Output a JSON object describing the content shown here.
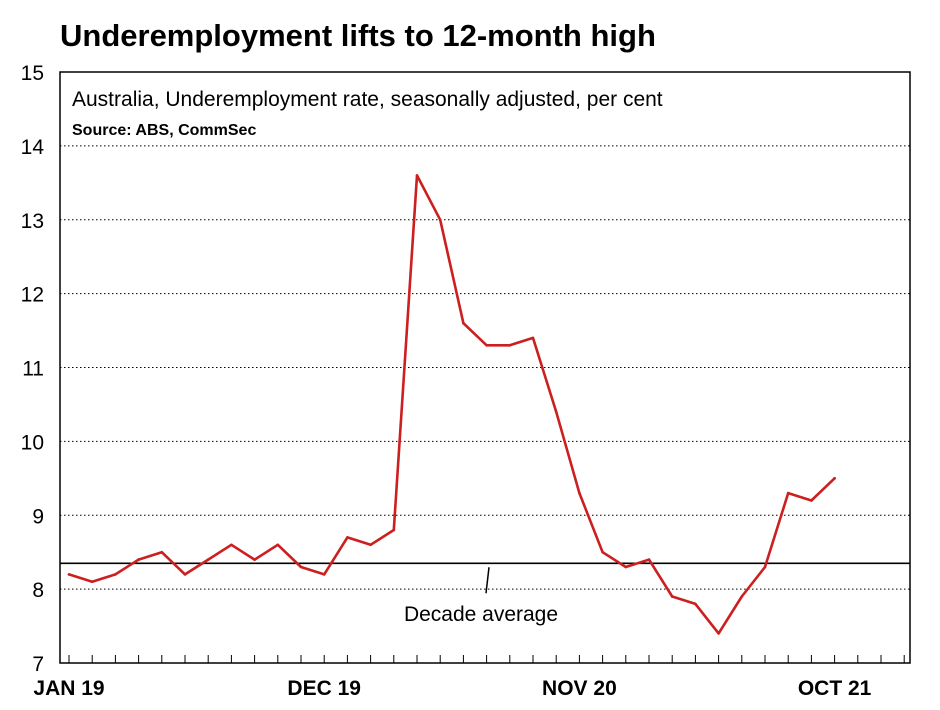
{
  "chart_data": {
    "type": "line",
    "title": "Underemployment lifts to 12-month high",
    "subtitle": "Australia, Underemployment rate, seasonally adjusted, per cent",
    "source": "Source: ABS, CommSec",
    "x": [
      "Jan 2019",
      "Feb 2019",
      "Mar 2019",
      "Apr 2019",
      "May 2019",
      "Jun 2019",
      "Jul 2019",
      "Aug 2019",
      "Sep 2019",
      "Oct 2019",
      "Nov 2019",
      "Dec 2019",
      "Jan 2020",
      "Feb 2020",
      "Mar 2020",
      "Apr 2020",
      "May 2020",
      "Jun 2020",
      "Jul 2020",
      "Aug 2020",
      "Sep 2020",
      "Oct 2020",
      "Nov 2020",
      "Dec 2020",
      "Jan 2021",
      "Feb 2021",
      "Mar 2021",
      "Apr 2021",
      "May 2021",
      "Jun 2021",
      "Jul 2021",
      "Aug 2021",
      "Sep 2021",
      "Oct 2021"
    ],
    "series": [
      {
        "values": [
          8.2,
          8.1,
          8.2,
          8.4,
          8.5,
          8.2,
          8.4,
          8.6,
          8.4,
          8.6,
          8.3,
          8.2,
          8.7,
          8.6,
          8.8,
          13.6,
          13.0,
          11.6,
          11.3,
          11.3,
          11.4,
          10.4,
          9.3,
          8.5,
          8.3,
          8.4,
          7.9,
          7.8,
          7.4,
          7.9,
          8.3,
          9.3,
          9.2,
          9.5
        ],
        "color": "#cc1f1f"
      }
    ],
    "reference_line": {
      "value": 8.35,
      "label": "Decade average",
      "color": "#000000"
    },
    "x_tick_labels": [
      "JAN 19",
      "DEC 19",
      "NOV 20",
      "OCT 21"
    ],
    "x_tick_label_indices": [
      0,
      11,
      22,
      33
    ],
    "y_ticks": [
      7,
      8,
      9,
      10,
      11,
      12,
      13,
      14,
      15
    ],
    "ylim": [
      7,
      15
    ],
    "xlabel": "",
    "ylabel": "",
    "grid": "horizontal dotted",
    "legend": "none"
  }
}
